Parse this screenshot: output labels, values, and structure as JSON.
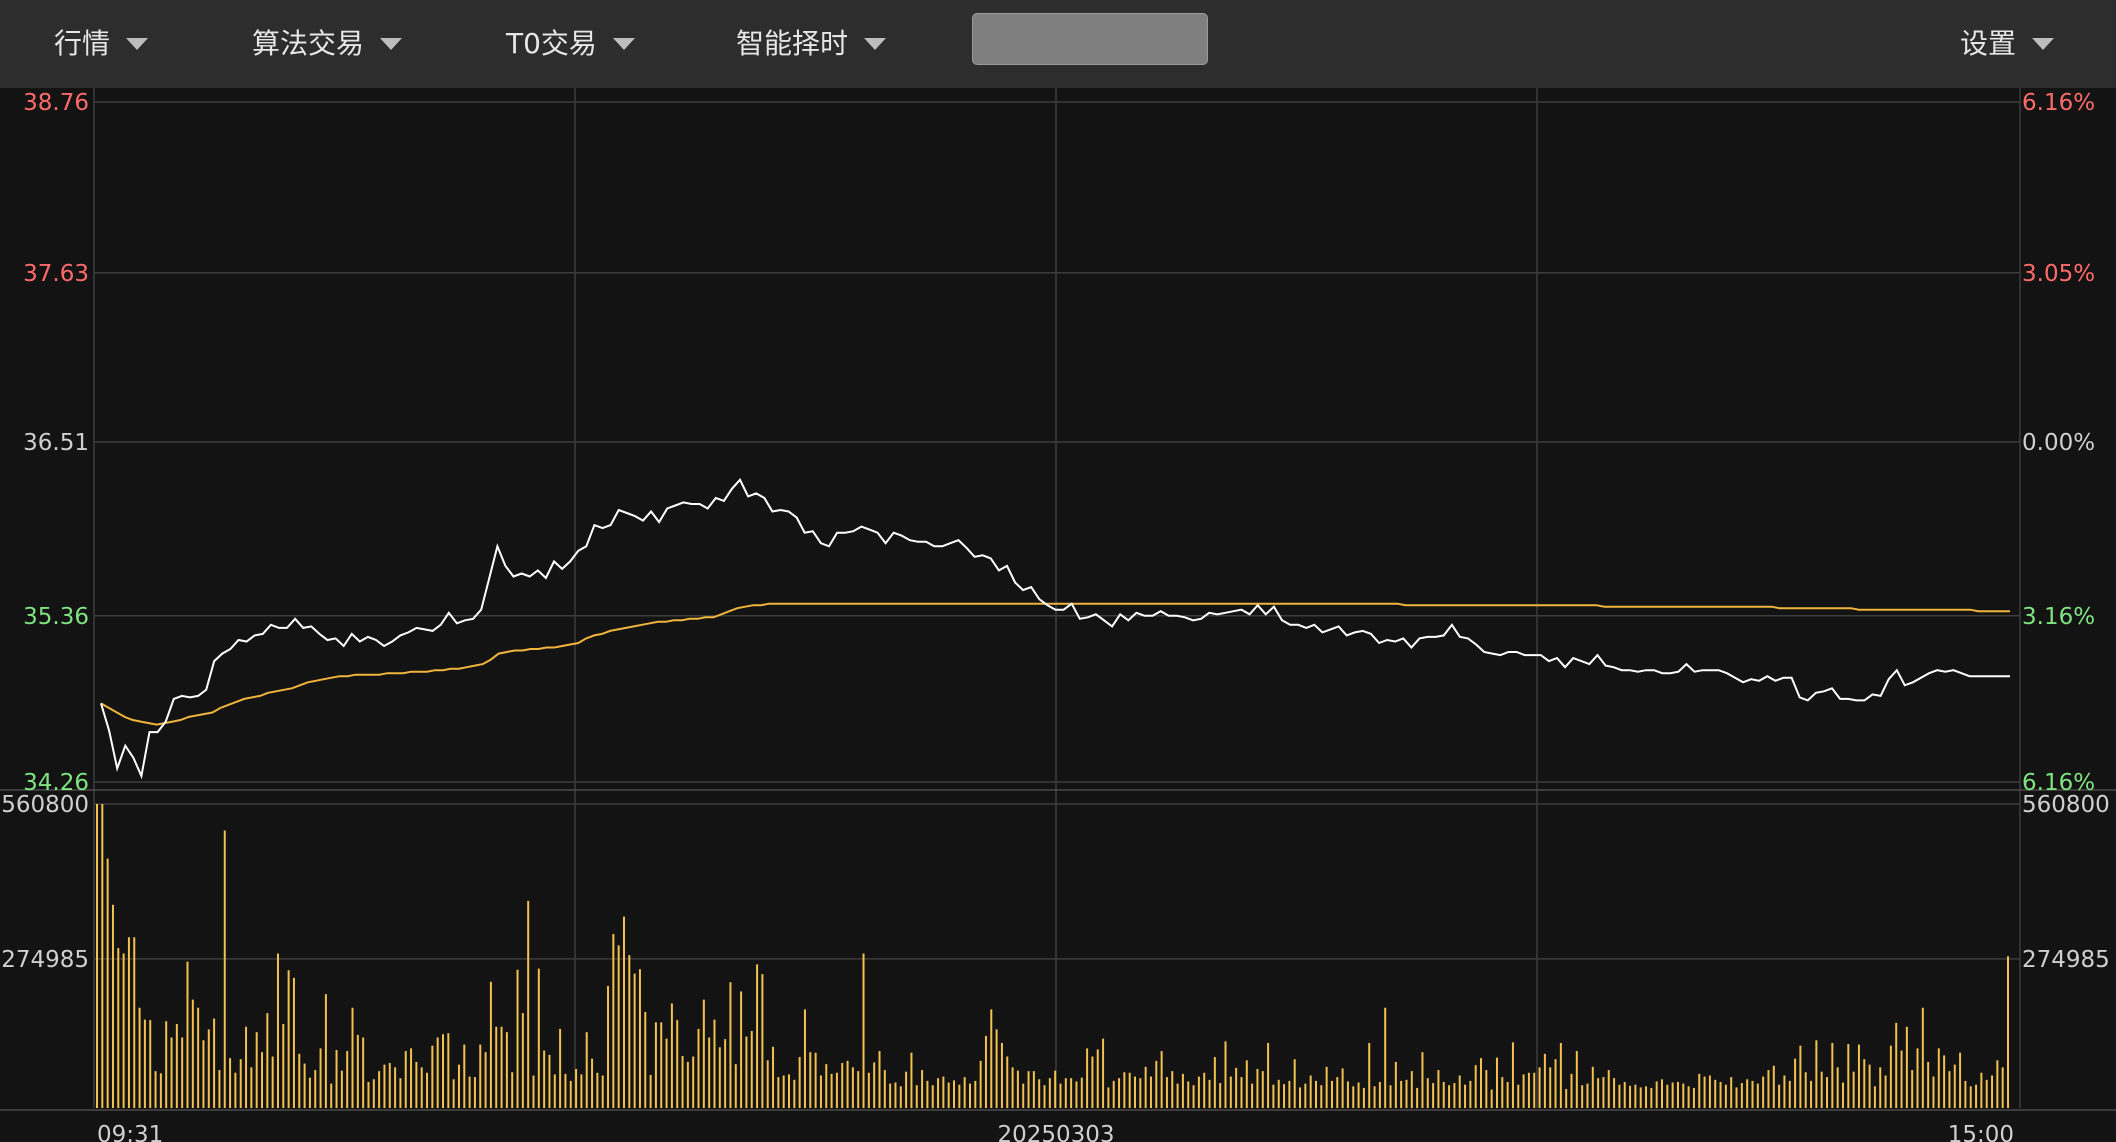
{
  "menu": {
    "market": "行情",
    "algo": "算法交易",
    "t0": "T0交易",
    "timing": "智能择时",
    "settings": "设置"
  },
  "search": {
    "value": ""
  },
  "colors": {
    "up": "#ff6b6b",
    "down": "#7fe37f",
    "neutral": "#cfcfcf",
    "price": "#ffffff",
    "avg": "#f0b43c",
    "volume": "#f2c14e"
  },
  "chart_data": {
    "type": "line",
    "title": "",
    "date_label": "20250303",
    "x_start_label": "09:31",
    "x_end_label": "15:00",
    "grid": true,
    "price_axis": {
      "ticks": [
        {
          "value": 38.76,
          "label": "38.76",
          "pct": "6.16%",
          "tone": "up"
        },
        {
          "value": 37.63,
          "label": "37.63",
          "pct": "3.05%",
          "tone": "up"
        },
        {
          "value": 36.51,
          "label": "36.51",
          "pct": "0.00%",
          "tone": "neutral"
        },
        {
          "value": 35.36,
          "label": "35.36",
          "pct": "3.16%",
          "tone": "down"
        },
        {
          "value": 34.26,
          "label": "34.26",
          "pct": "6.16%",
          "tone": "down"
        }
      ],
      "ylim": [
        34.26,
        38.76
      ]
    },
    "volume_axis": {
      "ticks": [
        {
          "value": 560800,
          "label": "560800"
        },
        {
          "value": 274985,
          "label": "274985"
        }
      ],
      "ylim": [
        0,
        560800
      ]
    },
    "series": [
      {
        "name": "price",
        "values": [
          34.78,
          34.6,
          34.35,
          34.5,
          34.42,
          34.3,
          34.59,
          34.59,
          34.66,
          34.81,
          34.83,
          34.82,
          34.83,
          34.87,
          35.06,
          35.11,
          35.14,
          35.2,
          35.19,
          35.23,
          35.24,
          35.3,
          35.28,
          35.28,
          35.34,
          35.28,
          35.29,
          35.24,
          35.2,
          35.21,
          35.16,
          35.24,
          35.19,
          35.22,
          35.2,
          35.16,
          35.19,
          35.23,
          35.25,
          35.28,
          35.27,
          35.26,
          35.3,
          35.38,
          35.31,
          35.33,
          35.34,
          35.4,
          35.61,
          35.82,
          35.69,
          35.62,
          35.64,
          35.62,
          35.66,
          35.61,
          35.72,
          35.67,
          35.72,
          35.79,
          35.82,
          35.96,
          35.94,
          35.96,
          36.06,
          36.04,
          36.02,
          35.99,
          36.05,
          35.98,
          36.07,
          36.09,
          36.11,
          36.1,
          36.1,
          36.07,
          36.14,
          36.12,
          36.2,
          36.26,
          36.15,
          36.17,
          36.14,
          36.05,
          36.06,
          36.05,
          36.01,
          35.91,
          35.92,
          35.84,
          35.82,
          35.91,
          35.91,
          35.92,
          35.95,
          35.93,
          35.91,
          35.84,
          35.91,
          35.89,
          35.86,
          35.85,
          35.85,
          35.82,
          35.82,
          35.84,
          35.86,
          35.81,
          35.75,
          35.76,
          35.74,
          35.66,
          35.69,
          35.58,
          35.53,
          35.55,
          35.47,
          35.43,
          35.4,
          35.4,
          35.44,
          35.34,
          35.35,
          35.37,
          35.33,
          35.29,
          35.37,
          35.33,
          35.38,
          35.36,
          35.36,
          35.39,
          35.36,
          35.36,
          35.35,
          35.33,
          35.34,
          35.38,
          35.37,
          35.38,
          35.39,
          35.4,
          35.37,
          35.43,
          35.37,
          35.42,
          35.33,
          35.3,
          35.3,
          35.28,
          35.3,
          35.25,
          35.27,
          35.29,
          35.23,
          35.25,
          35.26,
          35.24,
          35.18,
          35.2,
          35.19,
          35.21,
          35.15,
          35.21,
          35.22,
          35.22,
          35.23,
          35.3,
          35.22,
          35.21,
          35.17,
          35.12,
          35.11,
          35.1,
          35.12,
          35.12,
          35.1,
          35.1,
          35.1,
          35.06,
          35.08,
          35.02,
          35.08,
          35.06,
          35.04,
          35.1,
          35.03,
          35.02,
          35.0,
          35.0,
          34.99,
          35.0,
          35.0,
          34.98,
          34.98,
          34.99,
          35.04,
          34.99,
          35.0,
          35.0,
          35.0,
          34.98,
          34.95,
          34.92,
          34.94,
          34.93,
          34.96,
          34.93,
          34.95,
          34.95,
          34.82,
          34.8,
          34.85,
          34.86,
          34.88,
          34.81,
          34.81,
          34.8,
          34.8,
          34.84,
          34.83,
          34.94,
          35.0,
          34.9,
          34.92,
          34.95,
          34.98,
          35.0,
          34.99,
          35.0,
          34.98,
          34.96,
          34.96,
          34.96,
          34.96,
          34.96,
          34.96
        ]
      },
      {
        "name": "average",
        "values": [
          34.78,
          34.75,
          34.72,
          34.69,
          34.67,
          34.66,
          34.65,
          34.64,
          34.65,
          34.66,
          34.67,
          34.69,
          34.7,
          34.71,
          34.72,
          34.75,
          34.77,
          34.79,
          34.81,
          34.82,
          34.83,
          34.85,
          34.86,
          34.87,
          34.88,
          34.9,
          34.92,
          34.93,
          34.94,
          34.95,
          34.96,
          34.96,
          34.97,
          34.97,
          34.97,
          34.97,
          34.98,
          34.98,
          34.98,
          34.99,
          34.99,
          34.99,
          35.0,
          35.0,
          35.01,
          35.01,
          35.02,
          35.03,
          35.04,
          35.07,
          35.11,
          35.12,
          35.13,
          35.13,
          35.14,
          35.14,
          35.15,
          35.15,
          35.16,
          35.17,
          35.18,
          35.21,
          35.23,
          35.24,
          35.26,
          35.27,
          35.28,
          35.29,
          35.3,
          35.31,
          35.32,
          35.32,
          35.33,
          35.33,
          35.34,
          35.34,
          35.35,
          35.35,
          35.37,
          35.39,
          35.41,
          35.42,
          35.43,
          35.43,
          35.44,
          35.44,
          35.44,
          35.44,
          35.44,
          35.44,
          35.44,
          35.44,
          35.44,
          35.44,
          35.44,
          35.44,
          35.44,
          35.44,
          35.44,
          35.44,
          35.44,
          35.44,
          35.44,
          35.44,
          35.44,
          35.44,
          35.44,
          35.44,
          35.44,
          35.44,
          35.44,
          35.44,
          35.44,
          35.44,
          35.44,
          35.44,
          35.44,
          35.44,
          35.44,
          35.44,
          35.44,
          35.44,
          35.44,
          35.44,
          35.44,
          35.44,
          35.44,
          35.44,
          35.44,
          35.44,
          35.44,
          35.44,
          35.44,
          35.44,
          35.44,
          35.44,
          35.44,
          35.44,
          35.44,
          35.44,
          35.44,
          35.44,
          35.44,
          35.44,
          35.44,
          35.44,
          35.44,
          35.44,
          35.44,
          35.44,
          35.44,
          35.44,
          35.44,
          35.44,
          35.44,
          35.44,
          35.44,
          35.44,
          35.44,
          35.44,
          35.44,
          35.44,
          35.44,
          35.44,
          35.43,
          35.43,
          35.43,
          35.43,
          35.43,
          35.43,
          35.43,
          35.43,
          35.43,
          35.43,
          35.43,
          35.43,
          35.43,
          35.43,
          35.43,
          35.43,
          35.43,
          35.43,
          35.43,
          35.43,
          35.43,
          35.43,
          35.43,
          35.43,
          35.43,
          35.42,
          35.42,
          35.42,
          35.42,
          35.42,
          35.42,
          35.42,
          35.42,
          35.42,
          35.42,
          35.42,
          35.42,
          35.42,
          35.42,
          35.42,
          35.42,
          35.42,
          35.42,
          35.42,
          35.42,
          35.42,
          35.42,
          35.41,
          35.41,
          35.41,
          35.41,
          35.41,
          35.41,
          35.41,
          35.41,
          35.41,
          35.41,
          35.4,
          35.4,
          35.4,
          35.4,
          35.4,
          35.4,
          35.4,
          35.4,
          35.4,
          35.4,
          35.4,
          35.4,
          35.4,
          35.4,
          35.4,
          35.39,
          35.39,
          35.39,
          35.39,
          35.39
        ]
      },
      {
        "name": "volume",
        "values": [
          560800,
          560800,
          460000,
          375000,
          295000,
          285000,
          315000,
          315000,
          185000,
          163000,
          162000,
          68000,
          64000,
          160000,
          130000,
          155000,
          130000,
          270000,
          200000,
          185000,
          125000,
          145000,
          165000,
          70000,
          512000,
          92000,
          65000,
          90000,
          150000,
          75000,
          140000,
          103000,
          175000,
          95000,
          285000,
          155000,
          254000,
          240000,
          100000,
          82000,
          56000,
          70000,
          110000,
          210000,
          45000,
          107000,
          69000,
          105000,
          185000,
          135000,
          130000,
          48000,
          53000,
          68000,
          80000,
          83000,
          75000,
          55000,
          105000,
          110000,
          85000,
          75000,
          65000,
          115000,
          130000,
          136000,
          138000,
          53000,
          80000,
          117000,
          58000,
          57000,
          117000,
          103000,
          233000,
          150000,
          150000,
          140000,
          66000,
          255000,
          175000,
          382000,
          60000,
          257000,
          106000,
          98000,
          62000,
          146000,
          63000,
          50000,
          72000,
          62000,
          140000,
          91000,
          65000,
          60000,
          225000,
          321000,
          300000,
          353000,
          282000,
          248000,
          256000,
          177000,
          61000,
          158000,
          158000,
          128000,
          193000,
          162000,
          96000,
          85000,
          95000,
          146000,
          200000,
          130000,
          163000,
          112000,
          127000,
          232000,
          81000,
          215000,
          132000,
          142000,
          265000,
          247000,
          88000,
          113000,
          57000,
          60000,
          62000,
          52000,
          94000,
          182000,
          103000,
          102000,
          60000,
          81000,
          63000,
          65000,
          83000,
          87000,
          75000,
          68000,
          285000,
          65000,
          84000,
          105000,
          70000,
          45000,
          47000,
          40000,
          67000,
          102000,
          42000,
          70000,
          50000,
          42000,
          55000,
          58000,
          47000,
          51000,
          43000,
          57000,
          45000,
          50000,
          87000,
          133000,
          182000,
          145000,
          120000,
          95000,
          75000,
          69000,
          45000,
          68000,
          68000,
          53000,
          42000,
          55000,
          69000,
          45000,
          55000,
          55000,
          49000,
          56000,
          110000,
          95000,
          108000,
          128000,
          38000,
          50000,
          55000,
          66000,
          65000,
          58000,
          55000,
          76000,
          58000,
          87000,
          105000,
          57000,
          68000,
          45000,
          63000,
          49000,
          42000,
          58000,
          65000,
          52000,
          94000,
          46000,
          123000,
          58000,
          74000,
          57000,
          88000,
          45000,
          72000,
          68000,
          120000,
          43000,
          52000,
          44000,
          50000,
          90000,
          38000,
          45000,
          60000,
          50000,
          42000,
          76000,
          50000,
          57000,
          73000,
          49000,
          40000,
          47000,
          37000,
          120000,
          40000,
          48000,
          185000,
          42000,
          85000,
          50000,
          52000,
          68000,
          37000,
          103000,
          55000,
          46000,
          70000,
          48000,
          42000,
          46000,
          60000,
          43000,
          50000,
          79000,
          92000,
          70000,
          34000,
          93000,
          57000,
          48000,
          121000,
          43000,
          62000,
          65000,
          65000,
          75000,
          100000,
          75000,
          90000,
          120000,
          35000,
          63000,
          105000,
          42000,
          45000,
          76000,
          55000,
          57000,
          70000,
          55000,
          43000,
          48000,
          41000,
          43000,
          38000,
          40000,
          37000,
          49000,
          53000,
          43000,
          47000,
          48000,
          45000,
          40000,
          37000,
          63000,
          58000,
          60000,
          52000,
          48000,
          43000,
          57000,
          38000,
          46000,
          53000,
          50000,
          45000,
          58000,
          70000,
          78000,
          43000,
          60000,
          50000,
          91000,
          115000,
          66000,
          50000,
          125000,
          67000,
          57000,
          120000,
          75000,
          47000,
          118000,
          67000,
          117000,
          90000,
          80000,
          40000,
          75000,
          60000,
          115000,
          157000,
          106000,
          150000,
          70000,
          110000,
          185000,
          85000,
          58000,
          110000,
          97000,
          68000,
          80000,
          102000,
          50000,
          40000,
          43000,
          65000,
          52000,
          60000,
          88000,
          75000,
          280000
        ]
      }
    ]
  }
}
